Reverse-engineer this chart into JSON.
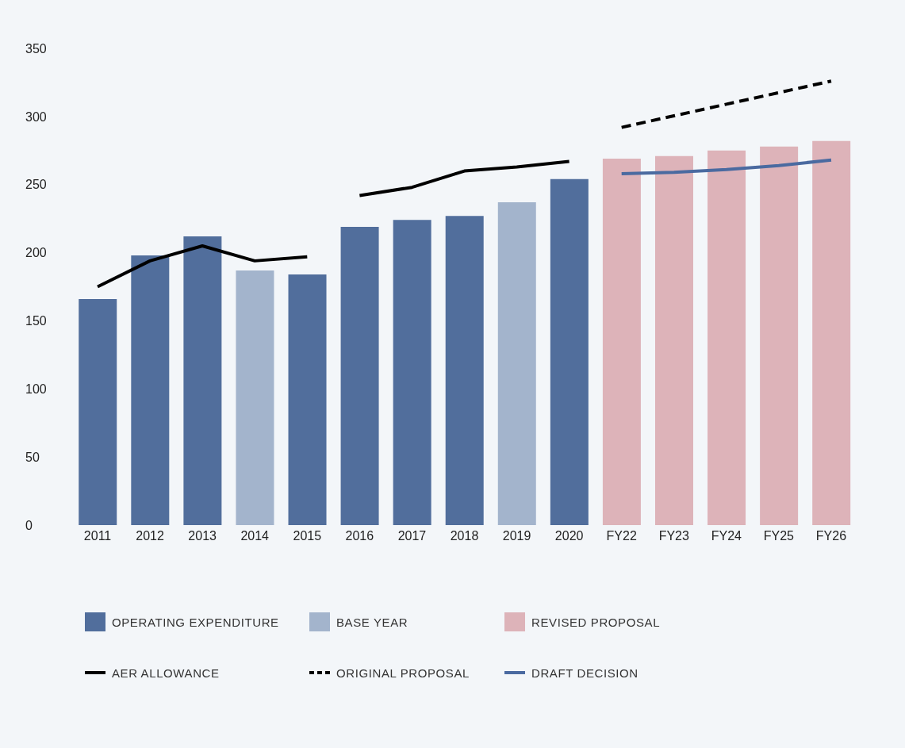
{
  "chart_data": {
    "type": "bar",
    "stacked": true,
    "categories": [
      "2011",
      "2012",
      "2013",
      "2014",
      "2015",
      "2016",
      "2017",
      "2018",
      "2019",
      "2020",
      "FY22",
      "FY23",
      "FY24",
      "FY25",
      "FY26"
    ],
    "series": [
      {
        "name": "OPERATING EXPENDITURE",
        "color": "#516e9c",
        "values": [
          166,
          198,
          212,
          null,
          184,
          219,
          224,
          227,
          null,
          254,
          null,
          null,
          null,
          null,
          null
        ]
      },
      {
        "name": "BASE YEAR",
        "color": "#a3b4cc",
        "values": [
          null,
          null,
          null,
          187,
          null,
          null,
          null,
          null,
          237,
          null,
          null,
          null,
          null,
          null,
          null
        ]
      },
      {
        "name": "REVISED PROPOSAL",
        "color": "#ddb3b9",
        "values": [
          null,
          null,
          null,
          null,
          null,
          null,
          null,
          null,
          null,
          null,
          269,
          271,
          275,
          278,
          282
        ]
      },
      {
        "name": "AER ALLOWANCE",
        "type": "line",
        "color": "#000000",
        "values": [
          175,
          194,
          205,
          194,
          197,
          null,
          null,
          null,
          null,
          null,
          null,
          null,
          null,
          null,
          null
        ]
      },
      {
        "type": "line",
        "color": "#000000",
        "values": [
          null,
          null,
          null,
          null,
          null,
          242,
          248,
          260,
          263,
          267,
          null,
          null,
          null,
          null,
          null
        ]
      },
      {
        "name": "ORIGINAL PROPOSAL",
        "type": "line",
        "line_style": "dashed",
        "color": "#000000",
        "values": [
          null,
          null,
          null,
          null,
          null,
          null,
          null,
          null,
          null,
          null,
          292,
          300.5,
          309,
          317.5,
          326
        ]
      },
      {
        "name": "DRAFT DECISION",
        "type": "line",
        "color": "#4a6aa0",
        "values": [
          null,
          null,
          null,
          null,
          null,
          null,
          null,
          null,
          null,
          null,
          258,
          259,
          261,
          264,
          268
        ]
      }
    ],
    "ylim": [
      0,
      350
    ],
    "yticks": [
      0,
      50,
      100,
      150,
      200,
      250,
      300,
      350
    ],
    "grid": false,
    "legend": "bottom",
    "marker": "none"
  }
}
